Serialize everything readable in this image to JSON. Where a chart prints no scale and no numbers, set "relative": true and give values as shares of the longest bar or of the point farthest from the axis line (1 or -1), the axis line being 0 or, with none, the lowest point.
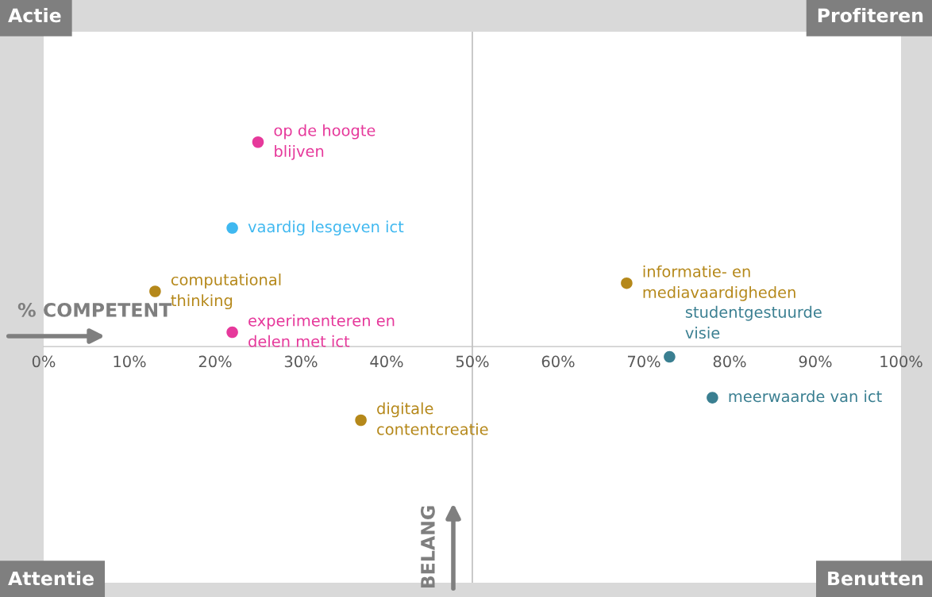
{
  "chart_data": {
    "type": "scatter",
    "relative": true,
    "xlabel": "% COMPETENT",
    "ylabel": "BELANG",
    "xlim": [
      0,
      100
    ],
    "xticks": [
      {
        "value": 0,
        "label": "0%"
      },
      {
        "value": 10,
        "label": "10%"
      },
      {
        "value": 20,
        "label": "20%"
      },
      {
        "value": 30,
        "label": "30%"
      },
      {
        "value": 40,
        "label": "40%"
      },
      {
        "value": 50,
        "label": "50%"
      },
      {
        "value": 60,
        "label": "60%"
      },
      {
        "value": 70,
        "label": "70%"
      },
      {
        "value": 80,
        "label": "80%"
      },
      {
        "value": 90,
        "label": "90%"
      },
      {
        "value": 100,
        "label": "100%"
      }
    ],
    "tick_labels": "x",
    "grid": false,
    "marker": "circle",
    "ref_lines": [
      {
        "axis": "x",
        "value": 50,
        "color": "#bfbfbf"
      }
    ],
    "annotations": [
      "Actie",
      "Profiteren",
      "Attentie",
      "Benutten",
      {
        "text": "op de hoogte\nblijven",
        "x": 25,
        "y": 1
      },
      {
        "text": "experimenteren en\ndelen met ict",
        "x": 22,
        "y": 0.07
      },
      {
        "text": "vaardig lesgeven ict",
        "x": 22,
        "y": 0.58
      },
      {
        "text": "computational\nthinking",
        "x": 13,
        "y": 0.27
      },
      {
        "text": "digitale\ncontentcreatie",
        "x": 37,
        "y": -0.36
      },
      {
        "text": "informatie- en\nmediavaardigheden",
        "x": 68,
        "y": 0.31
      },
      {
        "text": "studentgestuurde\nvisie",
        "x": 73,
        "y": -0.05
      },
      {
        "text": "meerwaarde van ict",
        "x": 78,
        "y": -0.25
      }
    ],
    "series": [
      {
        "color": "#e6399b",
        "x": [
          25,
          22
        ],
        "values": [
          1,
          0.07
        ]
      },
      {
        "color": "#3fb8f0",
        "x": [
          22
        ],
        "values": [
          0.58
        ]
      },
      {
        "color": "#b5881a",
        "x": [
          13,
          37,
          68
        ],
        "values": [
          0.27,
          -0.36,
          0.31
        ]
      },
      {
        "color": "#3a7f91",
        "x": [
          73,
          78
        ],
        "values": [
          -0.05,
          -0.25
        ]
      }
    ]
  }
}
